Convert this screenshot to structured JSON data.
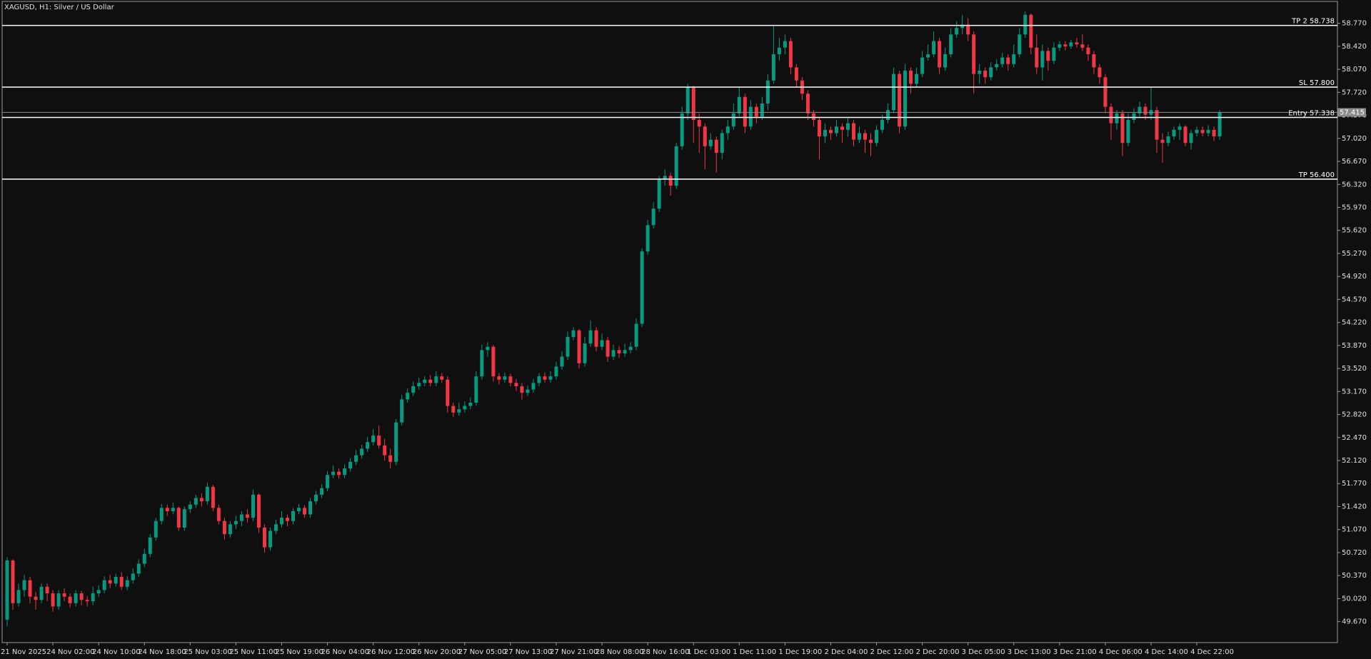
{
  "chart_data": {
    "type": "candlestick",
    "title": "XAGUSD, H1:  Silver / US Dollar",
    "up_color": "#089981",
    "down_color": "#f23645",
    "x": [
      "21 Nov 2025",
      null,
      null,
      null,
      null,
      null,
      null,
      null,
      "24 Nov 02:00",
      null,
      null,
      null,
      null,
      null,
      null,
      null,
      "24 Nov 10:00",
      null,
      null,
      null,
      null,
      null,
      null,
      null,
      "24 Nov 18:00",
      null,
      null,
      null,
      null,
      null,
      null,
      null,
      "25 Nov 03:00",
      null,
      null,
      null,
      null,
      null,
      null,
      null,
      "25 Nov 11:00",
      null,
      null,
      null,
      null,
      null,
      null,
      null,
      "25 Nov 19:00",
      null,
      null,
      null,
      null,
      null,
      null,
      null,
      "26 Nov 04:00",
      null,
      null,
      null,
      null,
      null,
      null,
      null,
      "26 Nov 12:00",
      null,
      null,
      null,
      null,
      null,
      null,
      null,
      "26 Nov 20:00",
      null,
      null,
      null,
      null,
      null,
      null,
      null,
      "27 Nov 05:00",
      null,
      null,
      null,
      null,
      null,
      null,
      null,
      "27 Nov 13:00",
      null,
      null,
      null,
      null,
      null,
      null,
      null,
      "27 Nov 21:00",
      null,
      null,
      null,
      null,
      null,
      null,
      null,
      "28 Nov 08:00",
      null,
      null,
      null,
      null,
      null,
      null,
      null,
      "28 Nov 16:00",
      null,
      null,
      null,
      null,
      null,
      null,
      null,
      "1 Dec 03:00",
      null,
      null,
      null,
      null,
      null,
      null,
      null,
      "1 Dec 11:00",
      null,
      null,
      null,
      null,
      null,
      null,
      null,
      "1 Dec 19:00",
      null,
      null,
      null,
      null,
      null,
      null,
      null,
      "2 Dec 04:00",
      null,
      null,
      null,
      null,
      null,
      null,
      null,
      "2 Dec 12:00",
      null,
      null,
      null,
      null,
      null,
      null,
      null,
      "2 Dec 20:00",
      null,
      null,
      null,
      null,
      null,
      null,
      null,
      "3 Dec 05:00",
      null,
      null,
      null,
      null,
      null,
      null,
      null,
      "3 Dec 13:00",
      null,
      null,
      null,
      null,
      null,
      null,
      null,
      "3 Dec 21:00",
      null,
      null,
      null,
      null,
      null,
      null,
      null,
      "4 Dec 06:00",
      null,
      null,
      null,
      null,
      null,
      null,
      null,
      "4 Dec 14:00",
      null,
      null,
      null,
      null,
      null,
      null,
      null,
      "4 Dec 22:00",
      null,
      null,
      null,
      null
    ],
    "open": [
      49.7,
      50.6,
      49.95,
      50.15,
      50.3,
      50.05,
      50.0,
      50.2,
      50.1,
      49.9,
      50.1,
      50.05,
      49.95,
      50.1,
      50.0,
      49.98,
      50.1,
      50.15,
      50.3,
      50.25,
      50.35,
      50.2,
      50.3,
      50.4,
      50.55,
      50.7,
      50.95,
      51.2,
      51.4,
      51.35,
      51.4,
      51.1,
      51.38,
      51.45,
      51.55,
      51.5,
      51.72,
      51.4,
      51.2,
      51.0,
      51.15,
      51.2,
      51.3,
      51.25,
      51.6,
      51.1,
      50.8,
      51.05,
      51.15,
      51.25,
      51.2,
      51.35,
      51.4,
      51.3,
      51.5,
      51.6,
      51.7,
      51.9,
      51.95,
      51.9,
      52.0,
      52.1,
      52.2,
      52.3,
      52.4,
      52.5,
      52.35,
      52.2,
      52.1,
      52.7,
      53.05,
      53.15,
      53.25,
      53.3,
      53.35,
      53.3,
      53.4,
      53.35,
      52.95,
      52.85,
      52.9,
      52.95,
      53.0,
      53.4,
      53.8,
      53.85,
      53.4,
      53.35,
      53.4,
      53.3,
      53.25,
      53.15,
      53.2,
      53.3,
      53.4,
      53.35,
      53.4,
      53.55,
      53.7,
      54.0,
      54.1,
      53.6,
      53.9,
      54.1,
      53.85,
      53.95,
      53.7,
      53.8,
      53.75,
      53.8,
      53.85,
      54.2,
      55.3,
      55.7,
      55.95,
      56.4,
      56.45,
      56.3,
      56.9,
      57.4,
      57.8,
      57.3,
      57.2,
      56.9,
      57.0,
      56.8,
      57.1,
      57.2,
      57.4,
      57.65,
      57.2,
      57.5,
      57.35,
      57.55,
      57.9,
      58.3,
      58.4,
      58.5,
      58.1,
      57.9,
      57.7,
      57.4,
      57.3,
      57.05,
      57.15,
      57.1,
      57.2,
      57.15,
      57.25,
      57.0,
      57.1,
      57.0,
      56.95,
      57.15,
      57.3,
      57.45,
      58.0,
      57.2,
      58.05,
      57.85,
      58.0,
      58.25,
      58.3,
      58.5,
      58.1,
      58.3,
      58.6,
      58.7,
      58.75,
      58.6,
      58.0,
      58.05,
      57.95,
      58.1,
      58.15,
      58.25,
      58.15,
      58.3,
      58.6,
      58.9,
      58.4,
      58.1,
      58.35,
      58.2,
      58.4,
      58.45,
      58.42,
      58.48,
      58.45,
      58.4,
      58.3,
      58.1,
      57.95,
      57.5,
      57.25,
      57.4,
      56.95,
      57.3,
      57.4,
      57.5,
      57.38,
      57.45,
      57.0,
      56.95,
      57.05,
      57.15,
      57.2,
      56.95,
      57.1,
      57.15,
      57.1,
      57.15,
      57.05
    ],
    "high": [
      50.65,
      50.62,
      50.25,
      50.38,
      50.35,
      50.12,
      50.25,
      50.25,
      50.15,
      50.15,
      50.18,
      50.1,
      50.15,
      50.14,
      50.06,
      50.2,
      50.22,
      50.36,
      50.38,
      50.4,
      50.42,
      50.36,
      50.48,
      50.62,
      50.78,
      51.0,
      51.25,
      51.46,
      51.45,
      51.48,
      51.42,
      51.42,
      51.5,
      51.6,
      51.62,
      51.78,
      51.75,
      51.45,
      51.25,
      51.2,
      51.28,
      51.35,
      51.38,
      51.68,
      51.62,
      51.15,
      51.1,
      51.22,
      51.35,
      51.3,
      51.4,
      51.46,
      51.44,
      51.55,
      51.66,
      51.76,
      51.96,
      52.05,
      52.0,
      52.06,
      52.16,
      52.28,
      52.36,
      52.48,
      52.6,
      52.65,
      52.45,
      52.3,
      52.75,
      53.12,
      53.22,
      53.32,
      53.38,
      53.4,
      53.42,
      53.48,
      53.45,
      53.4,
      53.0,
      53.0,
      53.02,
      53.08,
      53.48,
      53.88,
      53.92,
      53.88,
      53.45,
      53.46,
      53.44,
      53.36,
      53.3,
      53.26,
      53.36,
      53.45,
      53.46,
      53.48,
      53.62,
      53.78,
      54.08,
      54.15,
      54.12,
      54.0,
      54.25,
      54.15,
      54.05,
      54.0,
      53.88,
      53.86,
      53.9,
      53.92,
      54.28,
      55.35,
      55.78,
      56.05,
      56.45,
      56.55,
      56.5,
      56.95,
      57.5,
      57.85,
      57.82,
      57.4,
      57.25,
      57.1,
      57.05,
      57.15,
      57.3,
      57.55,
      57.8,
      57.7,
      57.6,
      57.55,
      57.65,
      58.0,
      58.75,
      58.55,
      58.6,
      58.55,
      58.15,
      57.95,
      57.75,
      57.45,
      57.35,
      57.25,
      57.2,
      57.3,
      57.25,
      57.35,
      57.3,
      57.2,
      57.15,
      57.1,
      57.22,
      57.38,
      57.55,
      58.1,
      58.05,
      58.15,
      58.1,
      58.1,
      58.35,
      58.45,
      58.65,
      58.55,
      58.4,
      58.7,
      58.8,
      58.9,
      58.85,
      58.65,
      58.15,
      58.1,
      58.18,
      58.22,
      58.32,
      58.3,
      58.45,
      58.7,
      58.95,
      58.92,
      58.6,
      58.45,
      58.4,
      58.48,
      58.5,
      58.5,
      58.52,
      58.55,
      58.6,
      58.45,
      58.35,
      58.15,
      58.0,
      57.55,
      57.45,
      57.45,
      57.4,
      57.48,
      57.58,
      57.55,
      57.8,
      57.5,
      57.1,
      57.12,
      57.2,
      57.25,
      57.22,
      57.15,
      57.2,
      57.2,
      57.22,
      57.2,
      57.45
    ],
    "low": [
      49.6,
      49.85,
      49.9,
      50.05,
      49.95,
      49.85,
      49.95,
      49.98,
      49.82,
      49.85,
      49.98,
      49.88,
      49.9,
      49.92,
      49.9,
      49.92,
      50.05,
      50.1,
      50.18,
      50.2,
      50.15,
      50.15,
      50.25,
      50.35,
      50.5,
      50.65,
      50.9,
      51.15,
      51.28,
      51.3,
      51.05,
      51.05,
      51.32,
      51.4,
      51.42,
      51.45,
      51.35,
      51.15,
      50.92,
      50.95,
      51.08,
      51.12,
      51.18,
      51.2,
      51.02,
      50.72,
      50.75,
      51.0,
      51.1,
      51.12,
      51.15,
      51.3,
      51.25,
      51.25,
      51.45,
      51.55,
      51.65,
      51.85,
      51.84,
      51.85,
      51.95,
      52.05,
      52.15,
      52.25,
      52.35,
      52.3,
      52.12,
      52.0,
      52.05,
      52.65,
      53.0,
      53.1,
      53.2,
      53.25,
      53.25,
      53.25,
      53.3,
      52.85,
      52.78,
      52.8,
      52.85,
      52.9,
      52.95,
      53.35,
      53.7,
      53.32,
      53.28,
      53.3,
      53.25,
      53.18,
      53.05,
      53.1,
      53.15,
      53.25,
      53.3,
      53.3,
      53.35,
      53.5,
      53.65,
      53.95,
      53.52,
      53.55,
      53.85,
      53.78,
      53.8,
      53.62,
      53.65,
      53.68,
      53.7,
      53.75,
      53.8,
      54.15,
      55.25,
      55.65,
      55.9,
      56.3,
      56.15,
      56.25,
      56.85,
      57.3,
      56.95,
      56.8,
      56.55,
      56.85,
      56.5,
      56.7,
      57.0,
      57.15,
      57.35,
      57.1,
      57.15,
      57.25,
      57.3,
      57.45,
      57.85,
      58.2,
      58.3,
      58.0,
      57.8,
      57.6,
      57.3,
      57.2,
      56.7,
      56.95,
      57.0,
      57.05,
      56.95,
      57.05,
      56.9,
      56.95,
      56.8,
      56.75,
      56.9,
      57.1,
      57.25,
      57.4,
      57.1,
      57.15,
      57.7,
      57.8,
      57.95,
      58.2,
      58.25,
      58.0,
      58.05,
      58.25,
      58.55,
      58.6,
      58.5,
      57.7,
      57.85,
      57.85,
      57.9,
      58.05,
      58.1,
      58.05,
      58.1,
      58.25,
      58.55,
      58.3,
      58.0,
      57.9,
      58.05,
      58.15,
      58.35,
      58.36,
      58.38,
      58.4,
      58.35,
      58.2,
      58.0,
      57.85,
      57.4,
      57.0,
      57.15,
      56.75,
      56.9,
      57.25,
      57.35,
      57.3,
      57.3,
      56.8,
      56.65,
      56.9,
      57.0,
      57.0,
      56.9,
      56.85,
      57.05,
      57.05,
      57.05,
      56.98,
      57.0
    ],
    "close": [
      50.6,
      49.95,
      50.15,
      50.3,
      50.05,
      50.0,
      50.2,
      50.1,
      49.9,
      50.1,
      50.05,
      49.95,
      50.1,
      50.0,
      49.98,
      50.1,
      50.15,
      50.3,
      50.25,
      50.35,
      50.2,
      50.3,
      50.4,
      50.55,
      50.7,
      50.95,
      51.2,
      51.4,
      51.35,
      51.4,
      51.1,
      51.38,
      51.45,
      51.55,
      51.5,
      51.72,
      51.4,
      51.2,
      51.0,
      51.15,
      51.2,
      51.3,
      51.25,
      51.6,
      51.1,
      50.8,
      51.05,
      51.15,
      51.25,
      51.2,
      51.35,
      51.4,
      51.3,
      51.5,
      51.6,
      51.7,
      51.9,
      51.95,
      51.9,
      52.0,
      52.1,
      52.2,
      52.3,
      52.4,
      52.5,
      52.35,
      52.2,
      52.1,
      52.7,
      53.05,
      53.15,
      53.25,
      53.3,
      53.35,
      53.3,
      53.4,
      53.35,
      52.95,
      52.85,
      52.9,
      52.95,
      53.0,
      53.4,
      53.8,
      53.85,
      53.4,
      53.35,
      53.4,
      53.3,
      53.25,
      53.15,
      53.2,
      53.3,
      53.4,
      53.35,
      53.4,
      53.55,
      53.7,
      54.0,
      54.1,
      53.6,
      53.9,
      54.1,
      53.85,
      53.95,
      53.7,
      53.8,
      53.75,
      53.8,
      53.85,
      54.2,
      55.3,
      55.7,
      55.95,
      56.4,
      56.45,
      56.3,
      56.9,
      57.4,
      57.8,
      57.3,
      57.2,
      56.9,
      57.0,
      56.8,
      57.1,
      57.2,
      57.4,
      57.65,
      57.2,
      57.5,
      57.35,
      57.55,
      57.9,
      58.3,
      58.4,
      58.5,
      58.1,
      57.9,
      57.7,
      57.4,
      57.3,
      57.05,
      57.15,
      57.1,
      57.2,
      57.15,
      57.25,
      57.0,
      57.1,
      57.0,
      56.95,
      57.15,
      57.3,
      57.45,
      58.0,
      57.2,
      58.05,
      57.85,
      58.0,
      58.25,
      58.3,
      58.5,
      58.1,
      58.3,
      58.6,
      58.7,
      58.75,
      58.6,
      58.0,
      58.05,
      57.95,
      58.1,
      58.15,
      58.25,
      58.15,
      58.3,
      58.6,
      58.9,
      58.4,
      58.1,
      58.35,
      58.2,
      58.4,
      58.45,
      58.42,
      58.48,
      58.45,
      58.4,
      58.3,
      58.1,
      57.95,
      57.5,
      57.25,
      57.4,
      56.95,
      57.3,
      57.4,
      57.5,
      57.38,
      57.45,
      57.0,
      56.95,
      57.05,
      57.15,
      57.2,
      56.95,
      57.1,
      57.15,
      57.1,
      57.15,
      57.05,
      57.415
    ],
    "ylim": [
      49.351,
      59.103
    ],
    "yticks": [
      {
        "value": 49.67,
        "label": "49.670"
      },
      {
        "value": 50.02,
        "label": "50.020"
      },
      {
        "value": 50.37,
        "label": "50.370"
      },
      {
        "value": 50.72,
        "label": "50.720"
      },
      {
        "value": 51.07,
        "label": "51.070"
      },
      {
        "value": 51.42,
        "label": "51.420"
      },
      {
        "value": 51.77,
        "label": "51.770"
      },
      {
        "value": 52.12,
        "label": "52.120"
      },
      {
        "value": 52.47,
        "label": "52.470"
      },
      {
        "value": 52.82,
        "label": "52.820"
      },
      {
        "value": 53.17,
        "label": "53.170"
      },
      {
        "value": 53.52,
        "label": "53.520"
      },
      {
        "value": 53.87,
        "label": "53.870"
      },
      {
        "value": 54.22,
        "label": "54.220"
      },
      {
        "value": 54.57,
        "label": "54.570"
      },
      {
        "value": 54.92,
        "label": "54.920"
      },
      {
        "value": 55.27,
        "label": "55.270"
      },
      {
        "value": 55.62,
        "label": "55.620"
      },
      {
        "value": 55.97,
        "label": "55.970"
      },
      {
        "value": 56.32,
        "label": "56.320"
      },
      {
        "value": 56.67,
        "label": "56.670"
      },
      {
        "value": 57.02,
        "label": "57.020"
      },
      {
        "value": 57.37,
        "label": "57.370"
      },
      {
        "value": 57.72,
        "label": "57.720"
      },
      {
        "value": 58.07,
        "label": "58.070"
      },
      {
        "value": 58.42,
        "label": "58.420"
      },
      {
        "value": 58.77,
        "label": "58.770"
      }
    ],
    "levels": [
      {
        "label": "TP 2 58.738",
        "value": 58.738
      },
      {
        "label": "SL 57.800",
        "value": 57.8
      },
      {
        "label": "Entry 57.338",
        "value": 57.338
      },
      {
        "label": "TP 56.400",
        "value": 56.4
      }
    ],
    "bid": 57.415
  }
}
